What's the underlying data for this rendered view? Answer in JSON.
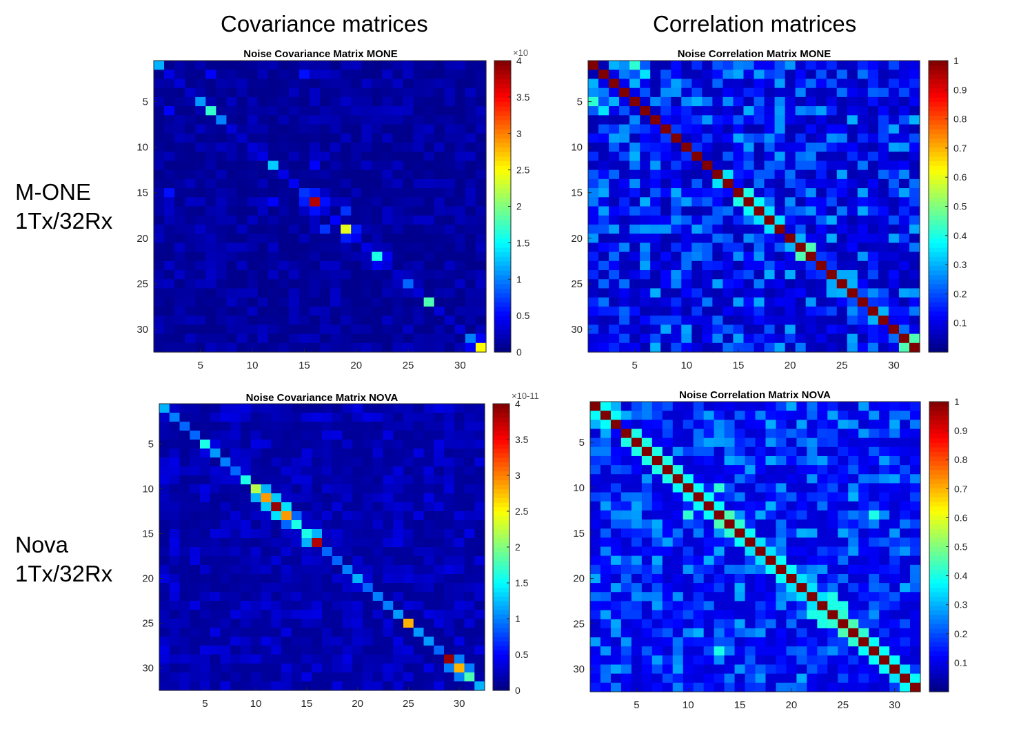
{
  "headers": {
    "left": "Covariance matrices",
    "right": "Correlation matrices",
    "row1_line1": "M-ONE",
    "row1_line2": "1Tx/32Rx",
    "row2_line1": "Nova",
    "row2_line2": "1Tx/32Rx"
  },
  "chart_data": [
    {
      "type": "heatmap",
      "title": "Noise Covariance Matrix MONE",
      "size": 32,
      "xticks": [
        5,
        10,
        15,
        20,
        25,
        30
      ],
      "yticks": [
        5,
        10,
        15,
        20,
        25,
        30
      ],
      "clim": [
        0,
        4
      ],
      "cticks": [
        0,
        0.5,
        1,
        1.5,
        2,
        2.5,
        3,
        3.5,
        4
      ],
      "exponent_label": "×10",
      "diagonal": [
        1.2,
        0.4,
        0.35,
        0.3,
        1.1,
        1.7,
        1.0,
        0.35,
        0.3,
        0.35,
        0.4,
        1.3,
        0.4,
        0.45,
        0.7,
        3.8,
        0.35,
        0.5,
        2.4,
        0.45,
        0.4,
        1.6,
        0.35,
        0.3,
        0.9,
        0.35,
        1.8,
        0.35,
        0.3,
        0.35,
        1.0,
        2.5
      ],
      "highlights": [
        [
          1,
          5,
          0.5
        ],
        [
          1,
          14,
          0.55
        ],
        [
          14,
          15,
          0.6
        ],
        [
          15,
          16,
          0.55
        ],
        [
          16,
          18,
          0.7
        ],
        [
          18,
          19,
          0.6
        ],
        [
          11,
          15,
          0.5
        ],
        [
          21,
          22,
          0.45
        ],
        [
          30,
          31,
          0.5
        ]
      ],
      "background": [
        0.05,
        0.28
      ]
    },
    {
      "type": "heatmap",
      "title": "Noise Correlation Matrix MONE",
      "size": 32,
      "xticks": [
        5,
        10,
        15,
        20,
        25,
        30
      ],
      "yticks": [
        5,
        10,
        15,
        20,
        25,
        30
      ],
      "clim": [
        0,
        1
      ],
      "cticks": [
        0.1,
        0.2,
        0.3,
        0.4,
        0.5,
        0.6,
        0.7,
        0.8,
        0.9,
        1
      ],
      "exponent_label": "",
      "diagonal": [
        1,
        1,
        1,
        1,
        1,
        1,
        1,
        1,
        1,
        1,
        1,
        1,
        1,
        1,
        1,
        1,
        1,
        1,
        1,
        1,
        1,
        1,
        1,
        1,
        1,
        1,
        1,
        1,
        1,
        1,
        1,
        1
      ],
      "highlights": [
        [
          0,
          4,
          0.42
        ],
        [
          1,
          5,
          0.35
        ],
        [
          0,
          2,
          0.3
        ],
        [
          12,
          13,
          0.35
        ],
        [
          14,
          15,
          0.4
        ],
        [
          15,
          16,
          0.38
        ],
        [
          16,
          17,
          0.35
        ],
        [
          17,
          18,
          0.35
        ],
        [
          20,
          21,
          0.45
        ],
        [
          19,
          20,
          0.3
        ],
        [
          24,
          25,
          0.3
        ],
        [
          30,
          31,
          0.45
        ],
        [
          2,
          4,
          0.3
        ],
        [
          6,
          31,
          0.3
        ],
        [
          27,
          28,
          0.3
        ]
      ],
      "background": [
        0.05,
        0.3
      ]
    },
    {
      "type": "heatmap",
      "title": "Noise Covariance Matrix NOVA",
      "size": 32,
      "xticks": [
        5,
        10,
        15,
        20,
        25,
        30
      ],
      "yticks": [
        5,
        10,
        15,
        20,
        25,
        30
      ],
      "clim": [
        0,
        4
      ],
      "cticks": [
        0,
        0.5,
        1,
        1.5,
        2,
        2.5,
        3,
        3.5,
        4
      ],
      "exponent_label": "×10-11",
      "diagonal": [
        1.2,
        1.0,
        0.9,
        0.9,
        1.6,
        1.1,
        1.0,
        0.9,
        1.6,
        2.2,
        2.9,
        3.9,
        2.9,
        1.6,
        1.6,
        3.8,
        0.9,
        0.9,
        1.0,
        1.2,
        0.9,
        1.0,
        1.0,
        1.1,
        2.8,
        1.1,
        1.1,
        0.9,
        3.9,
        2.8,
        1.8,
        1.2
      ],
      "highlights": [
        [
          10,
          11,
          1.3
        ],
        [
          11,
          12,
          1.4
        ],
        [
          9,
          10,
          1.2
        ],
        [
          14,
          15,
          1.2
        ],
        [
          28,
          29,
          1.0
        ],
        [
          29,
          30,
          1.0
        ],
        [
          12,
          13,
          0.9
        ]
      ],
      "background": [
        0.1,
        0.4
      ]
    },
    {
      "type": "heatmap",
      "title": "Noise Correlation Matrix NOVA",
      "size": 32,
      "xticks": [
        5,
        10,
        15,
        20,
        25,
        30
      ],
      "yticks": [
        5,
        10,
        15,
        20,
        25,
        30
      ],
      "clim": [
        0,
        1
      ],
      "cticks": [
        0.1,
        0.2,
        0.3,
        0.4,
        0.5,
        0.6,
        0.7,
        0.8,
        0.9,
        1
      ],
      "exponent_label": "",
      "diagonal": [
        1,
        1,
        1,
        1,
        1,
        1,
        1,
        1,
        1,
        1,
        1,
        1,
        1,
        1,
        1,
        1,
        1,
        1,
        1,
        1,
        1,
        1,
        1,
        1,
        1,
        1,
        1,
        1,
        1,
        1,
        1,
        1
      ],
      "highlights": [
        [
          0,
          1,
          0.38
        ],
        [
          1,
          2,
          0.38
        ],
        [
          3,
          4,
          0.4
        ],
        [
          4,
          5,
          0.4
        ],
        [
          5,
          6,
          0.4
        ],
        [
          6,
          7,
          0.4
        ],
        [
          7,
          8,
          0.4
        ],
        [
          8,
          9,
          0.38
        ],
        [
          9,
          10,
          0.38
        ],
        [
          10,
          11,
          0.38
        ],
        [
          11,
          12,
          0.38
        ],
        [
          12,
          13,
          0.45
        ],
        [
          13,
          14,
          0.42
        ],
        [
          14,
          15,
          0.38
        ],
        [
          15,
          16,
          0.35
        ],
        [
          16,
          17,
          0.35
        ],
        [
          17,
          18,
          0.38
        ],
        [
          18,
          19,
          0.38
        ],
        [
          19,
          20,
          0.35
        ],
        [
          20,
          21,
          0.35
        ],
        [
          21,
          22,
          0.35
        ],
        [
          22,
          23,
          0.4
        ],
        [
          23,
          24,
          0.42
        ],
        [
          24,
          25,
          0.45
        ],
        [
          25,
          26,
          0.42
        ],
        [
          26,
          27,
          0.38
        ],
        [
          27,
          28,
          0.38
        ],
        [
          28,
          29,
          0.38
        ],
        [
          29,
          30,
          0.35
        ],
        [
          30,
          31,
          0.38
        ],
        [
          12,
          27,
          0.4
        ],
        [
          12,
          9,
          0.42
        ],
        [
          21,
          23,
          0.4
        ],
        [
          22,
          24,
          0.4
        ]
      ],
      "background": [
        0.08,
        0.3
      ]
    }
  ]
}
